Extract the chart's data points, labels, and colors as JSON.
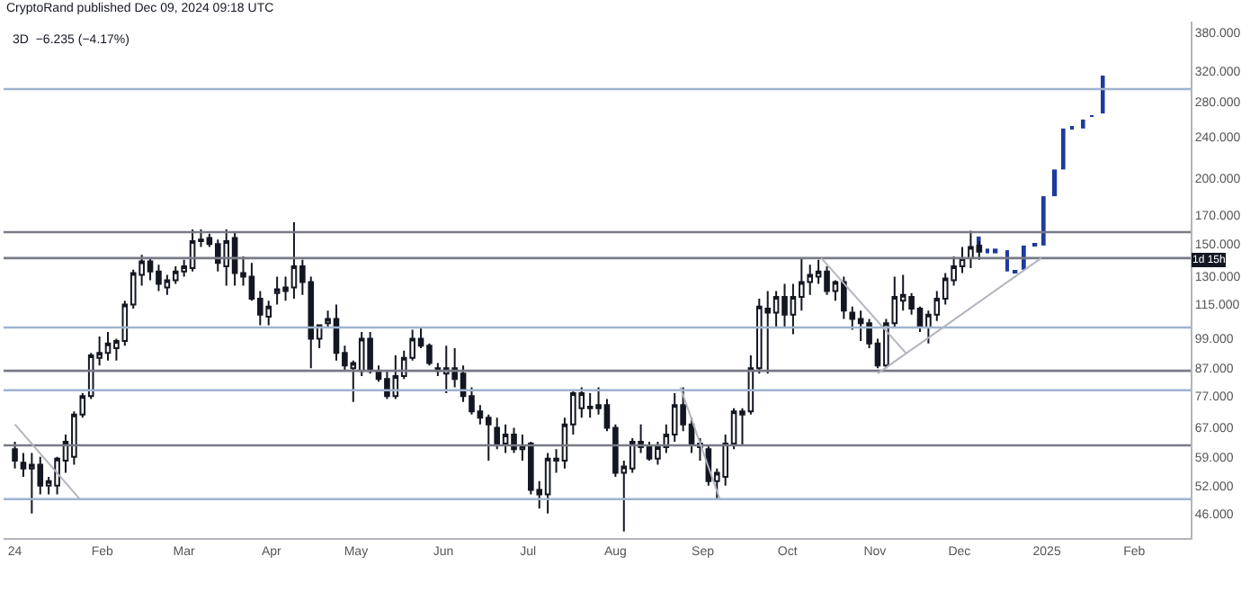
{
  "chart_data": {
    "type": "candlestick",
    "title": "CryptoRand published Dec 09, 2024 09:18 UTC",
    "subtitle": "3D  −6.235 (−4.17%)",
    "series": [
      {
        "color": "#131722",
        "x": [
          "2024-01-01",
          "2024-01-04",
          "2024-01-07",
          "2024-01-10",
          "2024-01-13",
          "2024-01-16",
          "2024-01-19",
          "2024-01-22",
          "2024-01-25",
          "2024-01-28",
          "2024-01-31",
          "2024-02-03",
          "2024-02-06",
          "2024-02-09",
          "2024-02-12",
          "2024-02-15",
          "2024-02-18",
          "2024-02-21",
          "2024-02-24",
          "2024-02-27",
          "2024-03-01",
          "2024-03-04",
          "2024-03-07",
          "2024-03-10",
          "2024-03-13",
          "2024-03-16",
          "2024-03-19",
          "2024-03-22",
          "2024-03-25",
          "2024-03-28",
          "2024-03-31",
          "2024-04-03",
          "2024-04-06",
          "2024-04-09",
          "2024-04-12",
          "2024-04-15",
          "2024-04-18",
          "2024-04-21",
          "2024-04-24",
          "2024-04-27",
          "2024-04-30",
          "2024-05-03",
          "2024-05-06",
          "2024-05-09",
          "2024-05-12",
          "2024-05-15",
          "2024-05-18",
          "2024-05-21",
          "2024-05-24",
          "2024-05-27",
          "2024-05-30",
          "2024-06-02",
          "2024-06-05",
          "2024-06-08",
          "2024-06-11",
          "2024-06-14",
          "2024-06-17",
          "2024-06-20",
          "2024-06-23",
          "2024-06-26",
          "2024-06-29",
          "2024-07-02",
          "2024-07-05",
          "2024-07-08",
          "2024-07-11",
          "2024-07-14",
          "2024-07-17",
          "2024-07-20",
          "2024-07-23",
          "2024-07-26",
          "2024-07-29",
          "2024-08-01",
          "2024-08-04",
          "2024-08-07",
          "2024-08-10",
          "2024-08-13",
          "2024-08-16",
          "2024-08-19",
          "2024-08-22",
          "2024-08-25",
          "2024-08-28",
          "2024-08-31",
          "2024-09-03",
          "2024-09-06",
          "2024-09-09",
          "2024-09-12",
          "2024-09-15",
          "2024-09-18",
          "2024-09-21",
          "2024-09-24",
          "2024-09-27",
          "2024-09-30",
          "2024-10-03",
          "2024-10-06",
          "2024-10-09",
          "2024-10-12",
          "2024-10-15",
          "2024-10-18",
          "2024-10-21",
          "2024-10-24",
          "2024-10-27",
          "2024-10-30",
          "2024-11-02",
          "2024-11-05",
          "2024-11-08",
          "2024-11-11",
          "2024-11-14",
          "2024-11-17",
          "2024-11-20",
          "2024-11-23",
          "2024-11-26",
          "2024-11-29",
          "2024-12-02",
          "2024-12-05",
          "2024-12-08"
        ],
        "ohlc": [
          [
            61,
            63,
            56,
            58
          ],
          [
            57.5,
            60,
            54,
            56
          ],
          [
            56,
            60,
            46,
            57
          ],
          [
            57,
            59,
            50,
            52
          ],
          [
            52,
            54,
            50,
            53
          ],
          [
            52,
            59,
            50,
            58.5
          ],
          [
            58,
            65,
            55,
            63
          ],
          [
            59,
            72,
            57,
            71
          ],
          [
            71,
            78,
            70,
            77
          ],
          [
            77,
            93,
            76,
            92
          ],
          [
            91,
            100,
            88,
            93
          ],
          [
            93,
            102,
            90,
            97
          ],
          [
            95,
            99,
            90,
            98
          ],
          [
            98,
            117,
            96,
            115
          ],
          [
            115,
            134,
            113,
            132
          ],
          [
            131,
            143,
            125,
            139
          ],
          [
            139,
            141,
            128,
            133
          ],
          [
            133,
            137,
            122,
            126
          ],
          [
            124,
            131,
            120,
            128
          ],
          [
            128,
            136,
            126,
            133
          ],
          [
            133,
            140,
            130,
            136
          ],
          [
            135,
            160,
            133,
            152
          ],
          [
            152,
            160,
            148,
            153
          ],
          [
            154,
            157,
            148,
            150
          ],
          [
            150,
            153,
            133,
            138
          ],
          [
            136,
            160,
            125,
            152
          ],
          [
            154,
            158,
            125,
            132
          ],
          [
            132,
            142,
            125,
            130
          ],
          [
            130,
            138,
            117,
            118
          ],
          [
            118,
            122,
            105,
            110
          ],
          [
            109,
            117,
            105,
            114
          ],
          [
            121,
            130,
            115,
            123
          ],
          [
            122,
            130,
            117,
            124
          ],
          [
            124,
            165,
            118,
            136
          ],
          [
            136,
            140,
            120,
            127
          ],
          [
            127,
            130,
            87,
            99
          ],
          [
            99,
            105,
            95,
            105
          ],
          [
            106,
            112,
            104,
            108
          ],
          [
            108,
            115,
            90,
            93
          ],
          [
            93,
            96,
            86,
            88
          ],
          [
            87,
            90,
            75,
            89
          ],
          [
            86,
            102,
            84,
            99
          ],
          [
            99,
            102,
            85,
            86
          ],
          [
            86,
            88,
            82,
            83
          ],
          [
            83,
            86,
            76,
            77
          ],
          [
            77,
            92,
            76,
            84
          ],
          [
            84,
            94,
            83,
            91
          ],
          [
            91,
            103,
            90,
            99
          ],
          [
            99,
            104,
            95,
            96
          ],
          [
            96,
            97,
            88,
            89
          ],
          [
            86,
            89,
            84,
            87
          ],
          [
            85,
            96,
            78,
            87
          ],
          [
            87,
            95,
            80,
            83
          ],
          [
            85,
            88,
            75,
            77
          ],
          [
            77,
            80,
            71,
            72
          ],
          [
            72,
            74,
            68,
            70
          ],
          [
            70,
            71,
            58,
            68
          ],
          [
            67,
            70,
            61,
            62.5
          ],
          [
            62.5,
            68,
            60,
            65
          ],
          [
            65,
            67,
            60,
            61
          ],
          [
            61,
            65,
            58,
            62
          ],
          [
            62.5,
            63,
            50,
            51
          ],
          [
            51,
            53,
            47,
            50
          ],
          [
            50,
            60,
            46,
            58.5
          ],
          [
            58,
            61,
            55,
            58.5
          ],
          [
            58,
            70,
            56,
            68
          ],
          [
            68,
            79,
            65,
            78
          ],
          [
            73,
            80,
            70,
            78
          ],
          [
            73,
            78,
            70,
            73.5
          ],
          [
            73,
            80,
            71,
            74
          ],
          [
            74,
            76,
            66,
            67
          ],
          [
            67,
            68,
            54,
            55
          ],
          [
            55,
            58,
            42.5,
            56.5
          ],
          [
            56,
            64,
            55,
            63
          ],
          [
            63,
            68,
            60,
            61.5
          ],
          [
            61.5,
            63,
            58,
            58.5
          ],
          [
            58.5,
            63,
            57,
            61.5
          ],
          [
            61.5,
            68,
            60,
            65
          ],
          [
            65,
            78,
            63,
            74
          ],
          [
            74,
            80,
            66,
            68
          ],
          [
            68,
            70,
            60,
            62.5
          ],
          [
            62.5,
            64,
            58,
            61.5
          ],
          [
            61,
            62,
            52,
            53
          ],
          [
            53,
            56,
            49,
            55
          ],
          [
            54,
            65,
            52,
            62.5
          ],
          [
            62.5,
            73,
            61,
            72
          ],
          [
            71,
            73,
            62,
            72
          ],
          [
            72,
            92,
            71,
            87
          ],
          [
            87,
            118,
            85,
            114
          ],
          [
            113,
            122,
            85,
            111
          ],
          [
            111,
            122,
            104,
            119
          ],
          [
            119,
            126,
            104,
            110
          ],
          [
            110,
            126,
            101,
            119
          ],
          [
            119,
            141,
            112,
            127
          ],
          [
            127,
            137,
            120,
            131
          ],
          [
            130,
            140,
            126,
            133
          ],
          [
            133,
            136,
            120,
            122
          ],
          [
            122,
            128,
            117,
            127
          ],
          [
            127,
            130,
            108,
            112
          ],
          [
            111,
            114,
            103,
            108
          ],
          [
            108,
            112,
            98,
            106
          ],
          [
            106,
            108,
            95,
            97
          ],
          [
            97,
            99,
            87,
            88
          ],
          [
            88,
            108,
            87,
            106
          ],
          [
            106,
            130,
            104,
            119
          ],
          [
            117,
            131,
            112,
            120
          ],
          [
            119,
            121,
            110,
            113
          ],
          [
            113,
            114,
            102,
            104
          ],
          [
            104,
            112,
            97,
            110
          ],
          [
            110,
            122,
            107,
            118
          ],
          [
            118,
            132,
            115,
            129
          ],
          [
            128,
            142,
            125,
            136
          ],
          [
            136,
            148,
            132,
            141
          ],
          [
            141,
            159,
            135,
            148
          ],
          [
            149,
            152,
            140,
            145
          ]
        ]
      },
      {
        "type": "bar",
        "color": "#1e3a9e",
        "x": [
          "2024-12-08",
          "2024-12-11",
          "2024-12-14",
          "2024-12-18",
          "2024-12-21",
          "2024-12-24",
          "2024-12-28",
          "2024-12-31",
          "2025-01-04",
          "2025-01-07",
          "2025-01-10",
          "2025-01-14",
          "2025-01-17",
          "2025-01-21"
        ],
        "base": [
          147,
          144,
          144,
          133,
          132,
          134,
          149,
          149,
          185,
          208,
          249,
          249,
          262,
          266
        ],
        "values": [
          8,
          3,
          3,
          13,
          1,
          15,
          1,
          36,
          23,
          41,
          2,
          10,
          2,
          48
        ]
      },
      {
        "type": "line",
        "color": "#b2b5be",
        "x": [
          "2024-11-02",
          "2024-12-30"
        ],
        "values": [
          85,
          141
        ]
      },
      {
        "type": "line",
        "color": "#b2b5be",
        "x": [
          "2024-01-01",
          "2024-01-24"
        ],
        "values": [
          68,
          49
        ]
      },
      {
        "type": "line",
        "color": "#b2b5be",
        "x": [
          "2024-08-24",
          "2024-09-07"
        ],
        "values": [
          80,
          49
        ]
      },
      {
        "type": "line",
        "color": "#b2b5be",
        "x": [
          "2024-10-13",
          "2024-11-12"
        ],
        "values": [
          141,
          93
        ]
      }
    ],
    "log": true,
    "ylim": [
      41.3,
      398
    ],
    "yticks": [
      {
        "value": 46,
        "label": "46.000"
      },
      {
        "value": 52,
        "label": "52.000"
      },
      {
        "value": 59,
        "label": "59.000"
      },
      {
        "value": 67,
        "label": "67.000"
      },
      {
        "value": 77,
        "label": "77.000"
      },
      {
        "value": 87,
        "label": "87.000"
      },
      {
        "value": 99,
        "label": "99.000"
      },
      {
        "value": 115,
        "label": "115.000"
      },
      {
        "value": 130,
        "label": "130.000"
      },
      {
        "value": 150,
        "label": "150.000"
      },
      {
        "value": 170,
        "label": "170.000"
      },
      {
        "value": 200,
        "label": "200.000"
      },
      {
        "value": 240,
        "label": "240.000"
      },
      {
        "value": 280,
        "label": "280.000"
      },
      {
        "value": 320,
        "label": "320.000"
      },
      {
        "value": 380,
        "label": "380.000"
      }
    ],
    "xlim": [
      "2023-12-28",
      "2025-02-21"
    ],
    "xticks": [
      {
        "value": "2024-01-01",
        "label": "24"
      },
      {
        "value": "2024-02-01",
        "label": "Feb"
      },
      {
        "value": "2024-03-01",
        "label": "Mar"
      },
      {
        "value": "2024-04-01",
        "label": "Apr"
      },
      {
        "value": "2024-05-01",
        "label": "May"
      },
      {
        "value": "2024-06-01",
        "label": "Jun"
      },
      {
        "value": "2024-07-01",
        "label": "Jul"
      },
      {
        "value": "2024-08-01",
        "label": "Aug"
      },
      {
        "value": "2024-09-01",
        "label": "Sep"
      },
      {
        "value": "2024-10-01",
        "label": "Oct"
      },
      {
        "value": "2024-11-01",
        "label": "Nov"
      },
      {
        "value": "2024-12-01",
        "label": "Dec"
      },
      {
        "value": "2025-01-01",
        "label": "2025"
      },
      {
        "value": "2025-02-01",
        "label": "Feb"
      }
    ],
    "ref_lines": [
      {
        "axis": "y",
        "value": 296,
        "color": "#9fb3d1"
      },
      {
        "axis": "y",
        "value": 158,
        "color": "#787b86"
      },
      {
        "axis": "y",
        "value": 141,
        "color": "#787b86"
      },
      {
        "axis": "y",
        "value": 104,
        "color": "#9fb3d1"
      },
      {
        "axis": "y",
        "value": 86,
        "color": "#787b86"
      },
      {
        "axis": "y",
        "value": 79,
        "color": "#9fb3d1"
      },
      {
        "axis": "y",
        "value": 62,
        "color": "#787b86"
      },
      {
        "axis": "y",
        "value": 49,
        "color": "#9fb3d1"
      }
    ],
    "annotations": [
      {
        "text": "1d 15h",
        "y": 141
      }
    ]
  }
}
